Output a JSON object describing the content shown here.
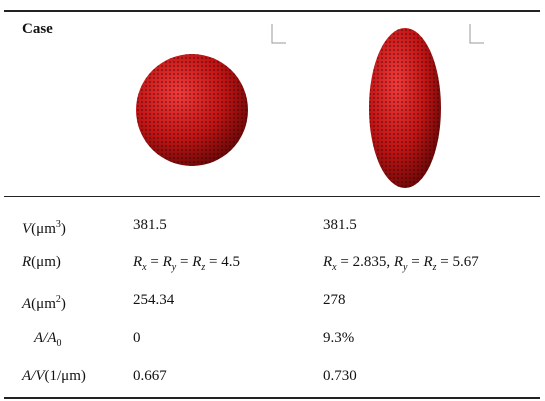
{
  "table": {
    "header": [
      "Case"
    ],
    "rows": [
      {
        "label": [
          "V",
          "(μm",
          "3",
          ")"
        ],
        "cells": [
          [
            "381.5"
          ],
          [
            "381.5"
          ]
        ]
      },
      {
        "label": [
          "R",
          "(μm)"
        ],
        "cells": [
          [
            "R",
            "x",
            " = ",
            "R",
            "y",
            " = ",
            "R",
            "z",
            " = 4.5"
          ],
          [
            "R",
            "x",
            " = 2.835, ",
            "R",
            "y",
            " = ",
            "R",
            "z",
            " = 5.67"
          ]
        ]
      },
      {
        "label": [
          "A",
          "(μm",
          "2",
          ")"
        ],
        "cells": [
          [
            "254.34"
          ],
          [
            "278"
          ]
        ]
      },
      {
        "label": [
          "A",
          "/",
          "A",
          "0"
        ],
        "cells": [
          [
            "0"
          ],
          [
            "9.3%"
          ]
        ]
      },
      {
        "label": [
          "A",
          "/",
          "V",
          "(1/μm)"
        ],
        "cells": [
          [
            "0.667"
          ],
          [
            "0.730"
          ]
        ]
      }
    ]
  }
}
